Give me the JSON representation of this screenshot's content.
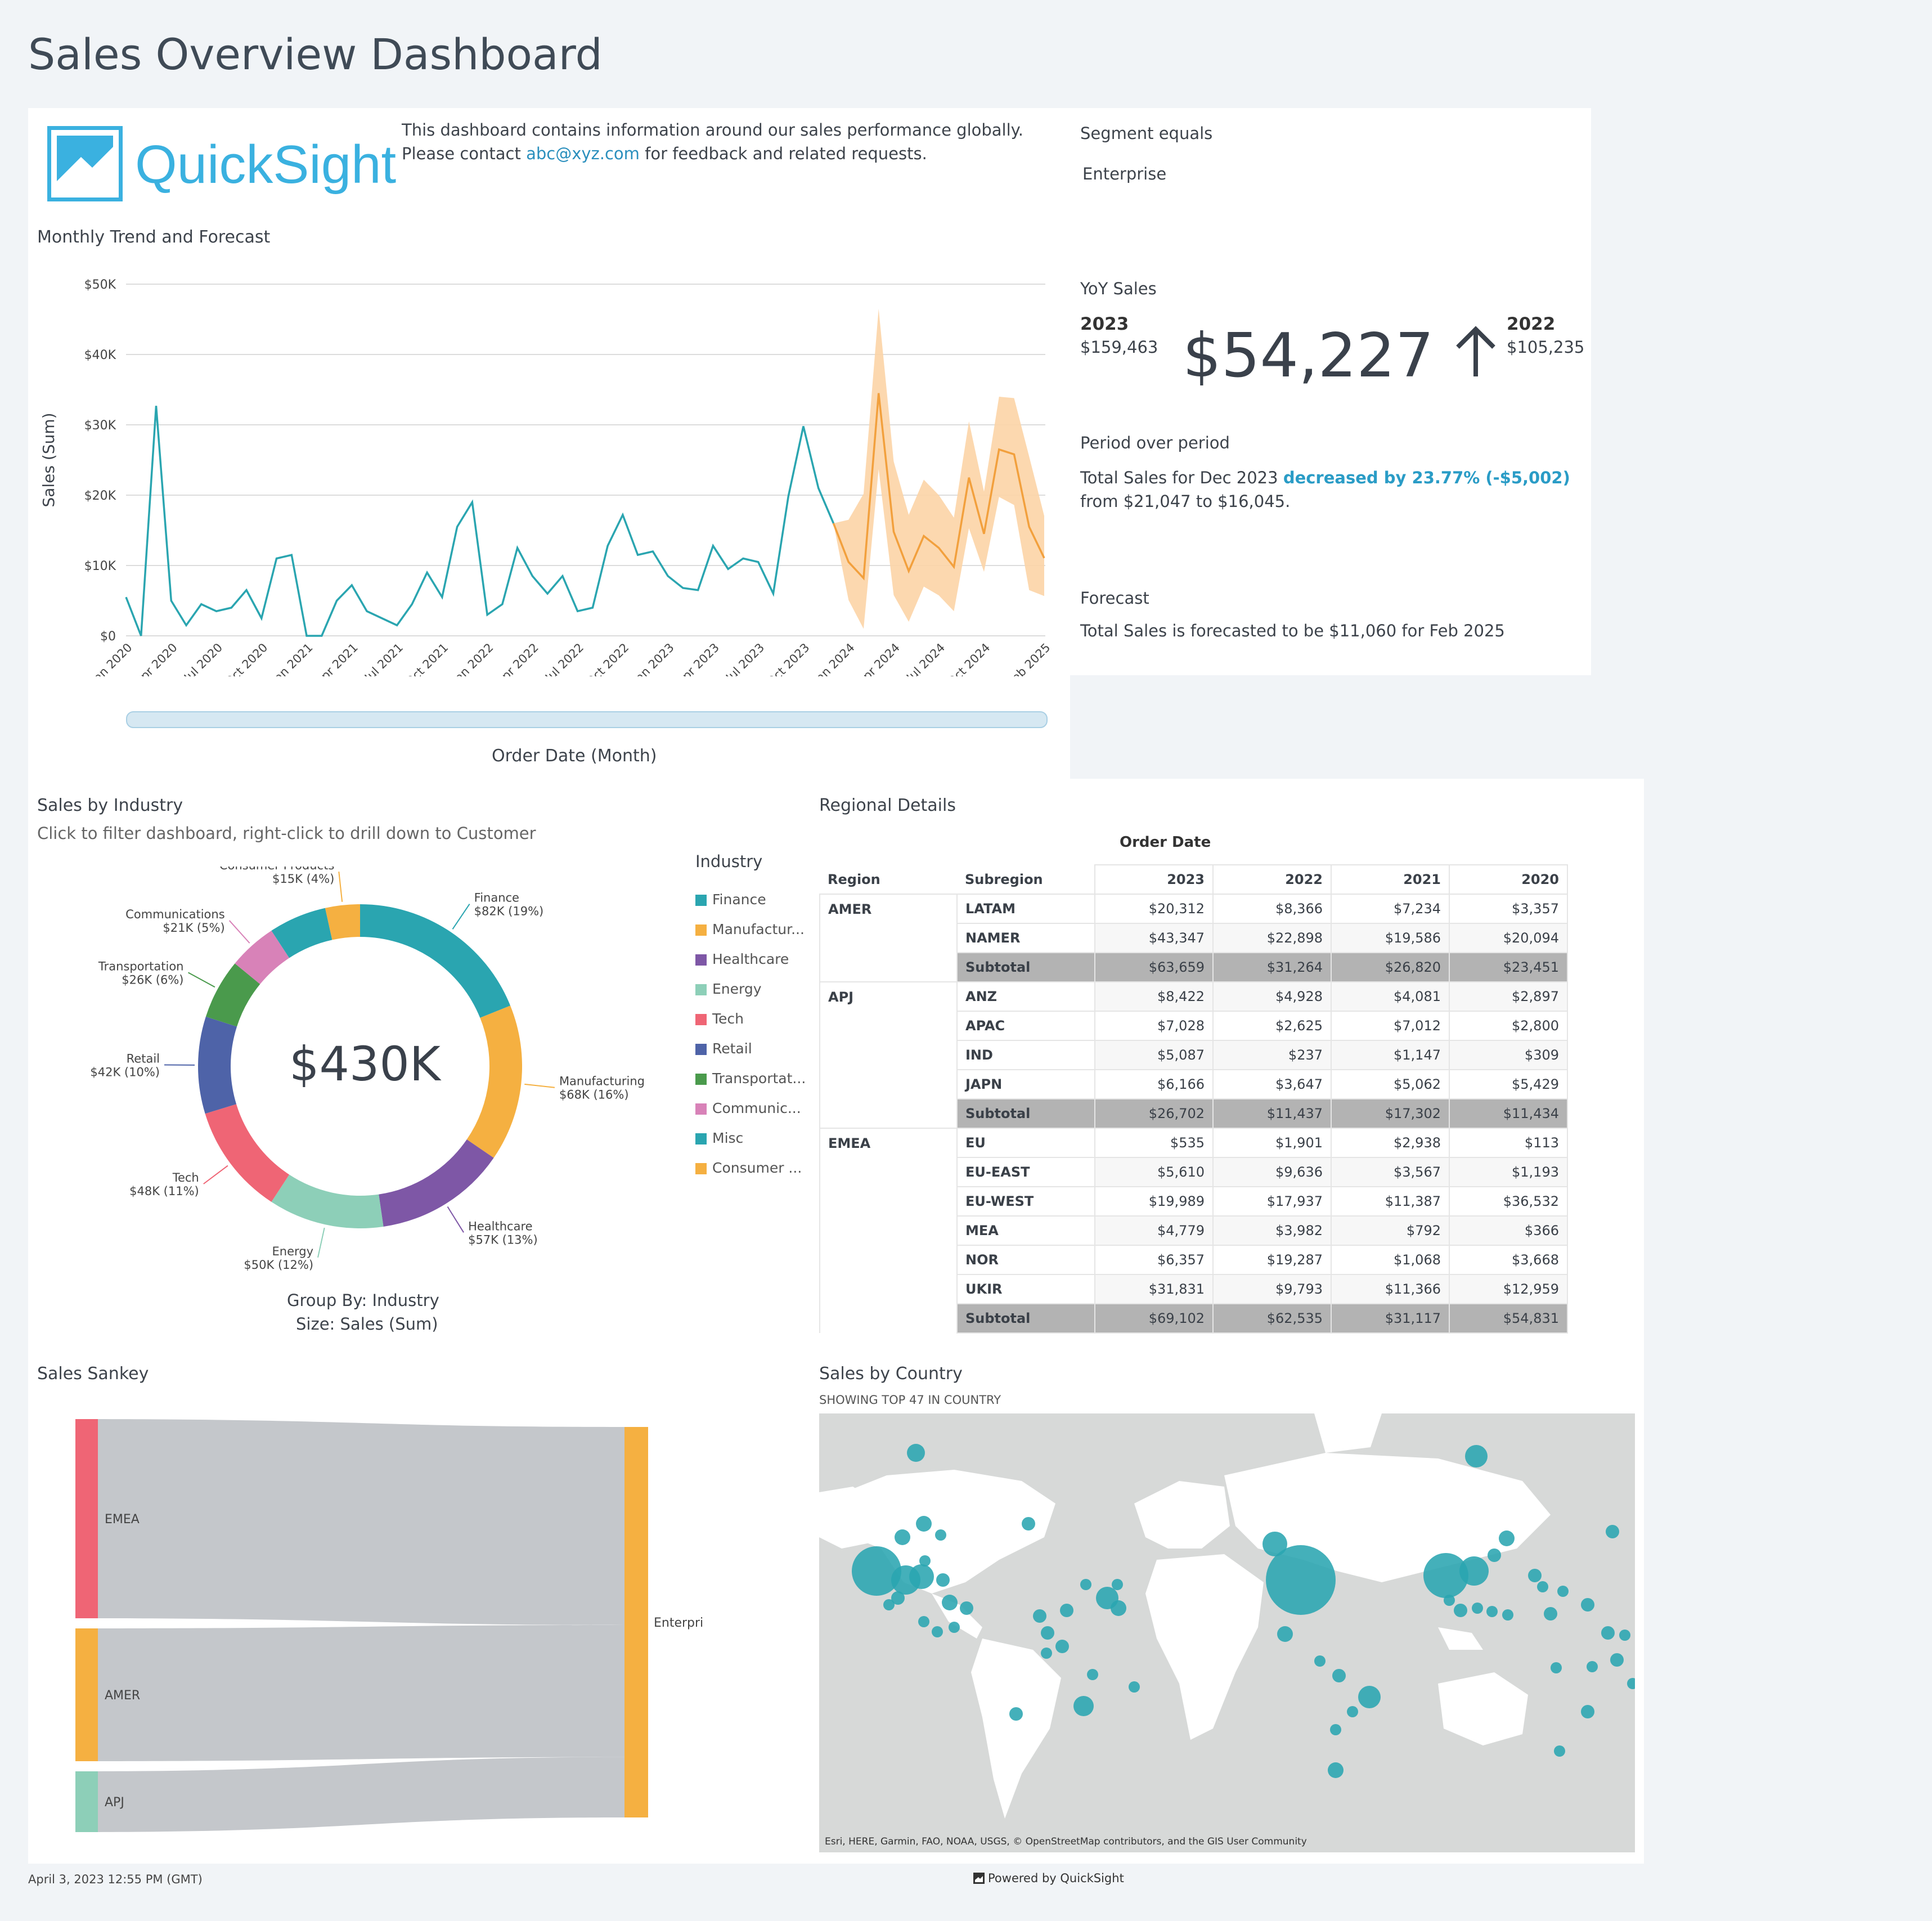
{
  "page_title": "Sales Overview Dashboard",
  "header": {
    "logo_text": "QuickSight",
    "description_pre": "This dashboard contains information around our sales performance globally. Please contact ",
    "description_link": "abc@xyz.com",
    "description_post": " for feedback and related requests."
  },
  "filter": {
    "label": "Segment equals",
    "value": "Enterprise"
  },
  "yoy": {
    "title": "YoY Sales",
    "left_year": "2023",
    "left_value": "$159,463",
    "delta": "$54,227",
    "right_year": "2022",
    "right_value": "$105,235"
  },
  "pop": {
    "title": "Period over period",
    "text_pre": "Total Sales for Dec 2023 ",
    "text_highlight": "decreased by 23.77% (-$5,002)",
    "text_post": " from $21,047 to $16,045."
  },
  "forecast": {
    "title": "Forecast",
    "text": "Total Sales is forecasted to be $11,060 for Feb 2025"
  },
  "trend": {
    "title": "Monthly Trend and Forecast",
    "xlabel": "Order Date (Month)",
    "ylabel": "Sales (Sum)",
    "yticks": [
      "$0",
      "$10K",
      "$20K",
      "$30K",
      "$40K",
      "$50K"
    ],
    "xticks": [
      "Jan 2020",
      "Apr 2020",
      "Jul 2020",
      "Oct 2020",
      "Jan 2021",
      "Apr 2021",
      "Jul 2021",
      "Oct 2021",
      "Jan 2022",
      "Apr 2022",
      "Jul 2022",
      "Oct 2022",
      "Jan 2023",
      "Apr 2023",
      "Jul 2023",
      "Oct 2023",
      "Jan 2024",
      "Apr 2024",
      "Jul 2024",
      "Oct 2024",
      "Feb 2025"
    ]
  },
  "industry": {
    "title": "Sales by Industry",
    "subtitle": "Click to filter dashboard, right-click to drill down to Customer",
    "total": "$430K",
    "legend_title": "Industry",
    "legend": [
      "Finance",
      "Manufactur...",
      "Healthcare",
      "Energy",
      "Tech",
      "Retail",
      "Transportat...",
      "Communic...",
      "Misc",
      "Consumer ..."
    ],
    "footer1": "Group By: Industry",
    "footer2": "Size: Sales (Sum)"
  },
  "regional": {
    "title": "Regional Details",
    "col_group": "Order Date",
    "h_region": "Region",
    "h_subregion": "Subregion",
    "years": [
      "2023",
      "2022",
      "2021",
      "2020"
    ],
    "rows": [
      {
        "region": "AMER",
        "sub": "LATAM",
        "v": [
          "$20,312",
          "$8,366",
          "$7,234",
          "$3,357"
        ]
      },
      {
        "region": "",
        "sub": "NAMER",
        "v": [
          "$43,347",
          "$22,898",
          "$19,586",
          "$20,094"
        ]
      },
      {
        "region": "",
        "sub": "Subtotal",
        "v": [
          "$63,659",
          "$31,264",
          "$26,820",
          "$23,451"
        ],
        "subtotal": true
      },
      {
        "region": "APJ",
        "sub": "ANZ",
        "v": [
          "$8,422",
          "$4,928",
          "$4,081",
          "$2,897"
        ]
      },
      {
        "region": "",
        "sub": "APAC",
        "v": [
          "$7,028",
          "$2,625",
          "$7,012",
          "$2,800"
        ]
      },
      {
        "region": "",
        "sub": "IND",
        "v": [
          "$5,087",
          "$237",
          "$1,147",
          "$309"
        ]
      },
      {
        "region": "",
        "sub": "JAPN",
        "v": [
          "$6,166",
          "$3,647",
          "$5,062",
          "$5,429"
        ]
      },
      {
        "region": "",
        "sub": "Subtotal",
        "v": [
          "$26,702",
          "$11,437",
          "$17,302",
          "$11,434"
        ],
        "subtotal": true
      },
      {
        "region": "EMEA",
        "sub": "EU",
        "v": [
          "$535",
          "$1,901",
          "$2,938",
          "$113"
        ]
      },
      {
        "region": "",
        "sub": "EU-EAST",
        "v": [
          "$5,610",
          "$9,636",
          "$3,567",
          "$1,193"
        ]
      },
      {
        "region": "",
        "sub": "EU-WEST",
        "v": [
          "$19,989",
          "$17,937",
          "$11,387",
          "$36,532"
        ]
      },
      {
        "region": "",
        "sub": "MEA",
        "v": [
          "$4,779",
          "$3,982",
          "$792",
          "$366"
        ]
      },
      {
        "region": "",
        "sub": "NOR",
        "v": [
          "$6,357",
          "$19,287",
          "$1,068",
          "$3,668"
        ]
      },
      {
        "region": "",
        "sub": "UKIR",
        "v": [
          "$31,831",
          "$9,793",
          "$11,366",
          "$12,959"
        ]
      },
      {
        "region": "",
        "sub": "Subtotal",
        "v": [
          "$69,102",
          "$62,535",
          "$31,117",
          "$54,831"
        ],
        "subtotal": true
      }
    ]
  },
  "sankey": {
    "title": "Sales Sankey",
    "sources": [
      "EMEA",
      "AMER",
      "APJ"
    ],
    "target": "Enterprise"
  },
  "map": {
    "title": "Sales by Country",
    "subtitle": "SHOWING TOP 47 IN COUNTRY",
    "attribution": "Esri, HERE, Garmin, FAO, NOAA, USGS, © OpenStreetMap contributors, and the GIS User Community"
  },
  "footer": {
    "timestamp": "April 3, 2023 12:55 PM (GMT)",
    "powered": "Powered by QuickSight"
  },
  "colors": {
    "teal": "#2aa5b0",
    "orange": "#f2a03d",
    "forecast_band": "#fcd4a6",
    "accent_link": "#2a8fbd"
  },
  "chart_data": [
    {
      "type": "line",
      "title": "Monthly Trend and Forecast",
      "xlabel": "Order Date (Month)",
      "ylabel": "Sales (Sum)",
      "ylim": [
        0,
        50000
      ],
      "series": [
        {
          "values": [
            5500,
            0,
            32700,
            5000,
            1500,
            4500,
            3500,
            4000,
            6500,
            2500,
            11000,
            11500,
            0,
            0,
            5000,
            7200,
            3500,
            2500,
            1500,
            4500,
            9000,
            5500,
            15500,
            19000,
            3000,
            4500,
            12500,
            8500,
            6000,
            8500,
            3500,
            4000,
            12800,
            17200,
            11500,
            12000,
            8500,
            6800,
            6500,
            12800,
            9500,
            11000,
            10500,
            6000,
            19800,
            29800,
            21000,
            16000
          ]
        },
        {
          "name": "Forecast",
          "values": [
            16000,
            10500,
            8200,
            34500,
            14800,
            9200,
            14200,
            12500,
            9800,
            22500,
            14500,
            26500,
            25800,
            15500,
            11060
          ]
        }
      ]
    },
    {
      "type": "pie",
      "title": "Sales by Industry",
      "categories": [
        "Finance",
        "Manufacturing",
        "Healthcare",
        "Energy",
        "Tech",
        "Retail",
        "Transportation",
        "Communications",
        "Misc",
        "Consumer Products"
      ],
      "values": [
        82000,
        68000,
        57000,
        50000,
        48000,
        42000,
        26000,
        21000,
        25000,
        15000
      ],
      "labels": [
        "$82K (19%)",
        "$68K (16%)",
        "$57K (13%)",
        "$50K (12%)",
        "$48K (11%)",
        "$42K (10%)",
        "$26K (6%)",
        "$21K (5%)",
        "",
        "$15K (4%)"
      ]
    }
  ]
}
